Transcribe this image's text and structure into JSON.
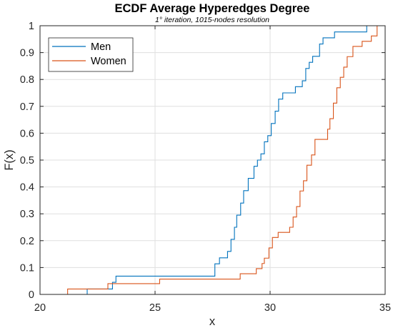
{
  "chart_data": {
    "type": "line",
    "step": true,
    "title": "ECDF Average Hyperedges Degree",
    "subtitle": "1° iteration, 1015-nodes resolution",
    "xlabel": "x",
    "ylabel": "F(x)",
    "xlim": [
      20,
      35
    ],
    "ylim": [
      0,
      1
    ],
    "x_ticks": [
      20,
      25,
      30,
      35
    ],
    "y_ticks": [
      0,
      0.1,
      0.2,
      0.3,
      0.4,
      0.5,
      0.6,
      0.7,
      0.8,
      0.9,
      1
    ],
    "x_tick_labels": [
      "20",
      "25",
      "30",
      "35"
    ],
    "y_tick_labels": [
      "0",
      "0.1",
      "0.2",
      "0.3",
      "0.4",
      "0.5",
      "0.6",
      "0.7",
      "0.8",
      "0.9",
      "1"
    ],
    "grid": true,
    "legend_position": "top-left",
    "series": [
      {
        "name": "Men",
        "color": "#0072BD",
        "points": [
          [
            22.05,
            0
          ],
          [
            22.05,
            0.02
          ],
          [
            23.15,
            0.02
          ],
          [
            23.15,
            0.045
          ],
          [
            23.3,
            0.045
          ],
          [
            23.3,
            0.068
          ],
          [
            27.6,
            0.068
          ],
          [
            27.6,
            0.114
          ],
          [
            27.8,
            0.114
          ],
          [
            27.8,
            0.136
          ],
          [
            28.15,
            0.136
          ],
          [
            28.15,
            0.16
          ],
          [
            28.3,
            0.16
          ],
          [
            28.3,
            0.205
          ],
          [
            28.45,
            0.205
          ],
          [
            28.45,
            0.25
          ],
          [
            28.55,
            0.25
          ],
          [
            28.55,
            0.295
          ],
          [
            28.72,
            0.295
          ],
          [
            28.72,
            0.34
          ],
          [
            28.85,
            0.34
          ],
          [
            28.85,
            0.386
          ],
          [
            29.05,
            0.386
          ],
          [
            29.05,
            0.432
          ],
          [
            29.3,
            0.432
          ],
          [
            29.3,
            0.477
          ],
          [
            29.45,
            0.477
          ],
          [
            29.45,
            0.5
          ],
          [
            29.6,
            0.5
          ],
          [
            29.6,
            0.523
          ],
          [
            29.75,
            0.523
          ],
          [
            29.75,
            0.568
          ],
          [
            29.9,
            0.568
          ],
          [
            29.9,
            0.591
          ],
          [
            30.05,
            0.591
          ],
          [
            30.05,
            0.636
          ],
          [
            30.22,
            0.636
          ],
          [
            30.22,
            0.682
          ],
          [
            30.37,
            0.682
          ],
          [
            30.37,
            0.727
          ],
          [
            30.55,
            0.727
          ],
          [
            30.55,
            0.75
          ],
          [
            31.1,
            0.75
          ],
          [
            31.1,
            0.773
          ],
          [
            31.4,
            0.773
          ],
          [
            31.4,
            0.795
          ],
          [
            31.55,
            0.795
          ],
          [
            31.55,
            0.841
          ],
          [
            31.7,
            0.841
          ],
          [
            31.7,
            0.864
          ],
          [
            31.85,
            0.864
          ],
          [
            31.85,
            0.886
          ],
          [
            32.15,
            0.886
          ],
          [
            32.15,
            0.932
          ],
          [
            32.3,
            0.932
          ],
          [
            32.3,
            0.955
          ],
          [
            32.8,
            0.955
          ],
          [
            32.8,
            0.977
          ],
          [
            34.2,
            0.977
          ],
          [
            34.2,
            1
          ],
          [
            35,
            1
          ]
        ]
      },
      {
        "name": "Women",
        "color": "#D95319",
        "points": [
          [
            21.2,
            0
          ],
          [
            21.2,
            0.02
          ],
          [
            22.95,
            0.02
          ],
          [
            22.95,
            0.04
          ],
          [
            25.2,
            0.04
          ],
          [
            25.2,
            0.057
          ],
          [
            28.7,
            0.057
          ],
          [
            28.7,
            0.077
          ],
          [
            29.4,
            0.077
          ],
          [
            29.4,
            0.096
          ],
          [
            29.65,
            0.096
          ],
          [
            29.65,
            0.115
          ],
          [
            29.75,
            0.115
          ],
          [
            29.75,
            0.135
          ],
          [
            29.95,
            0.135
          ],
          [
            29.95,
            0.173
          ],
          [
            30.1,
            0.173
          ],
          [
            30.1,
            0.212
          ],
          [
            30.35,
            0.212
          ],
          [
            30.35,
            0.231
          ],
          [
            30.85,
            0.231
          ],
          [
            30.85,
            0.25
          ],
          [
            31.0,
            0.25
          ],
          [
            31.0,
            0.288
          ],
          [
            31.15,
            0.288
          ],
          [
            31.15,
            0.327
          ],
          [
            31.3,
            0.327
          ],
          [
            31.3,
            0.385
          ],
          [
            31.45,
            0.385
          ],
          [
            31.45,
            0.423
          ],
          [
            31.6,
            0.423
          ],
          [
            31.6,
            0.481
          ],
          [
            31.8,
            0.481
          ],
          [
            31.8,
            0.519
          ],
          [
            31.95,
            0.519
          ],
          [
            31.95,
            0.577
          ],
          [
            32.5,
            0.577
          ],
          [
            32.5,
            0.615
          ],
          [
            32.6,
            0.615
          ],
          [
            32.6,
            0.654
          ],
          [
            32.75,
            0.654
          ],
          [
            32.75,
            0.712
          ],
          [
            32.9,
            0.712
          ],
          [
            32.9,
            0.769
          ],
          [
            33.05,
            0.769
          ],
          [
            33.05,
            0.808
          ],
          [
            33.2,
            0.808
          ],
          [
            33.2,
            0.846
          ],
          [
            33.35,
            0.846
          ],
          [
            33.35,
            0.885
          ],
          [
            33.6,
            0.885
          ],
          [
            33.6,
            0.923
          ],
          [
            34.0,
            0.923
          ],
          [
            34.0,
            0.942
          ],
          [
            34.4,
            0.942
          ],
          [
            34.4,
            0.962
          ],
          [
            34.65,
            0.962
          ],
          [
            34.65,
            1
          ],
          [
            35,
            1
          ]
        ]
      }
    ]
  }
}
